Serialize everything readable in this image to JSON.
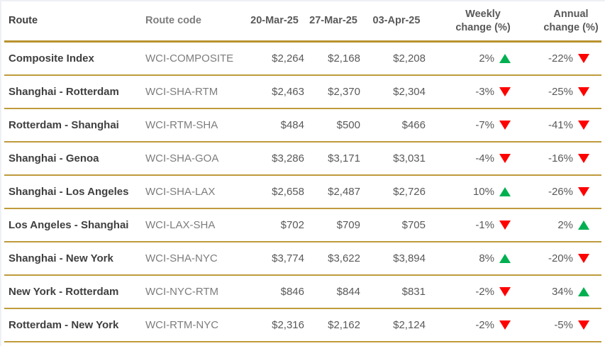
{
  "colors": {
    "accent_gold": "#bf9b3c",
    "up_green": "#00b050",
    "down_red": "#fe0000",
    "header_text": "#595959",
    "route_text": "#3f3f3f",
    "code_text": "#7d7d7d"
  },
  "header": {
    "route": "Route",
    "route_code": "Route code",
    "date1": "20-Mar-25",
    "date2": "27-Mar-25",
    "date3": "03-Apr-25",
    "weekly": "Weekly change (%)",
    "annual": "Annual change (%)"
  },
  "chart_data": {
    "type": "table",
    "columns": [
      "Route",
      "Route code",
      "20-Mar-25",
      "27-Mar-25",
      "03-Apr-25",
      "Weekly change (%)",
      "Annual change (%)"
    ],
    "rows": [
      {
        "route": "Composite Index",
        "code": "WCI-COMPOSITE",
        "d1": "$2,264",
        "d2": "$2,168",
        "d3": "$2,208",
        "weekly": "2%",
        "weekly_dir": "up",
        "annual": "-22%",
        "annual_dir": "down"
      },
      {
        "route": "Shanghai - Rotterdam",
        "code": "WCI-SHA-RTM",
        "d1": "$2,463",
        "d2": "$2,370",
        "d3": "$2,304",
        "weekly": "-3%",
        "weekly_dir": "down",
        "annual": "-25%",
        "annual_dir": "down"
      },
      {
        "route": "Rotterdam - Shanghai",
        "code": "WCI-RTM-SHA",
        "d1": "$484",
        "d2": "$500",
        "d3": "$466",
        "weekly": "-7%",
        "weekly_dir": "down",
        "annual": "-41%",
        "annual_dir": "down"
      },
      {
        "route": "Shanghai - Genoa",
        "code": "WCI-SHA-GOA",
        "d1": "$3,286",
        "d2": "$3,171",
        "d3": "$3,031",
        "weekly": "-4%",
        "weekly_dir": "down",
        "annual": "-16%",
        "annual_dir": "down"
      },
      {
        "route": "Shanghai - Los Angeles",
        "code": "WCI-SHA-LAX",
        "d1": "$2,658",
        "d2": "$2,487",
        "d3": "$2,726",
        "weekly": "10%",
        "weekly_dir": "up",
        "annual": "-26%",
        "annual_dir": "down"
      },
      {
        "route": "Los Angeles - Shanghai",
        "code": "WCI-LAX-SHA",
        "d1": "$702",
        "d2": "$709",
        "d3": "$705",
        "weekly": "-1%",
        "weekly_dir": "down",
        "annual": "2%",
        "annual_dir": "up"
      },
      {
        "route": "Shanghai - New York",
        "code": "WCI-SHA-NYC",
        "d1": "$3,774",
        "d2": "$3,622",
        "d3": "$3,894",
        "weekly": "8%",
        "weekly_dir": "up",
        "annual": "-20%",
        "annual_dir": "down"
      },
      {
        "route": "New York - Rotterdam",
        "code": "WCI-NYC-RTM",
        "d1": "$846",
        "d2": "$844",
        "d3": "$831",
        "weekly": "-2%",
        "weekly_dir": "down",
        "annual": "34%",
        "annual_dir": "up"
      },
      {
        "route": "Rotterdam - New York",
        "code": "WCI-RTM-NYC",
        "d1": "$2,316",
        "d2": "$2,162",
        "d3": "$2,124",
        "weekly": "-2%",
        "weekly_dir": "down",
        "annual": "-5%",
        "annual_dir": "down"
      }
    ]
  }
}
